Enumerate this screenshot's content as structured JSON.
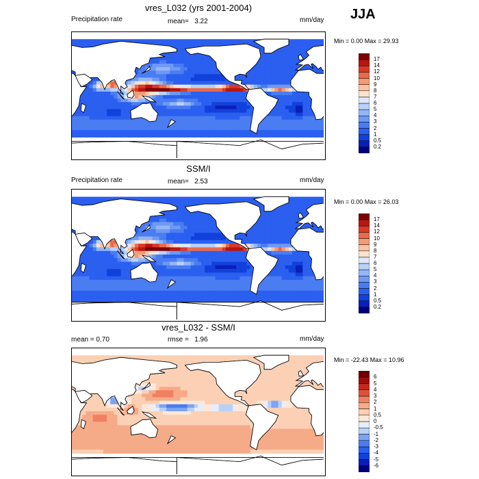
{
  "season": "JJA",
  "panels": [
    {
      "id": "model",
      "title": "vres_L032 (yrs 2001-2004)",
      "left_label": "Precipitation rate",
      "stat_label": "mean=",
      "stat_value": "3.22",
      "units": "mm/day",
      "minmax": "Min =   0.00 Max =  29.93",
      "palette": "precip"
    },
    {
      "id": "obs",
      "title": "SSM/I",
      "left_label": "Precipitation rate",
      "stat_label": "mean=",
      "stat_value": "2.53",
      "units": "mm/day",
      "minmax": "Min =   0.00 Max =  26.03",
      "palette": "precip"
    },
    {
      "id": "diff",
      "title": "vres_L032 - SSM/I",
      "left_label": "mean =   0.70",
      "stat_label": "rmse =",
      "stat_value": "1.96",
      "units": "mm/day",
      "minmax": "Min = -22.43 Max =  10.96",
      "palette": "diff"
    }
  ],
  "chart_data": [
    {
      "type": "heatmap",
      "title": "vres_L032 (yrs 2001-2004)",
      "variable": "Precipitation rate",
      "units": "mm/day",
      "mean": 3.22,
      "min": 0.0,
      "max": 29.93,
      "colorbar_levels": [
        "0.2",
        "0.5",
        "1",
        "2",
        "3",
        "4",
        "5",
        "6",
        "7",
        "8",
        "9",
        "10",
        "12",
        "14",
        "17"
      ],
      "colors": [
        "#00007a",
        "#0a1fb8",
        "#1240dc",
        "#2a5ff0",
        "#4a7cf2",
        "#6e99f4",
        "#93b6f6",
        "#b9d1f8",
        "#dde8fa",
        "#fde3cf",
        "#f9c3a3",
        "#f49a75",
        "#ec6a4a",
        "#d9392a",
        "#b8160f",
        "#7e0000"
      ]
    },
    {
      "type": "heatmap",
      "title": "SSM/I",
      "variable": "Precipitation rate",
      "units": "mm/day",
      "mean": 2.53,
      "min": 0.0,
      "max": 26.03,
      "colorbar_levels": [
        "0.2",
        "0.5",
        "1",
        "2",
        "3",
        "4",
        "5",
        "6",
        "7",
        "8",
        "9",
        "10",
        "12",
        "14",
        "17"
      ],
      "colors": [
        "#00007a",
        "#0a1fb8",
        "#1240dc",
        "#2a5ff0",
        "#4a7cf2",
        "#6e99f4",
        "#93b6f6",
        "#b9d1f8",
        "#dde8fa",
        "#fde3cf",
        "#f9c3a3",
        "#f49a75",
        "#ec6a4a",
        "#d9392a",
        "#b8160f",
        "#7e0000"
      ]
    },
    {
      "type": "heatmap",
      "title": "vres_L032 - SSM/I",
      "units": "mm/day",
      "mean": 0.7,
      "rmse": 1.96,
      "min": -22.43,
      "max": 10.96,
      "colorbar_levels": [
        "-6",
        "-5",
        "-4",
        "-3",
        "-2",
        "-1",
        "-0.5",
        "0",
        "0.5",
        "1",
        "2",
        "3",
        "4",
        "5",
        "6"
      ],
      "colors": [
        "#00007a",
        "#0a1fb8",
        "#1240dc",
        "#2a5ff0",
        "#4a7cf2",
        "#7ea3f4",
        "#b9d1f8",
        "#e6eefb",
        "#fde8d8",
        "#fbd0b5",
        "#f6ab88",
        "#ef8060",
        "#e1503a",
        "#c42a1c",
        "#a00e08",
        "#6e0000"
      ]
    }
  ]
}
